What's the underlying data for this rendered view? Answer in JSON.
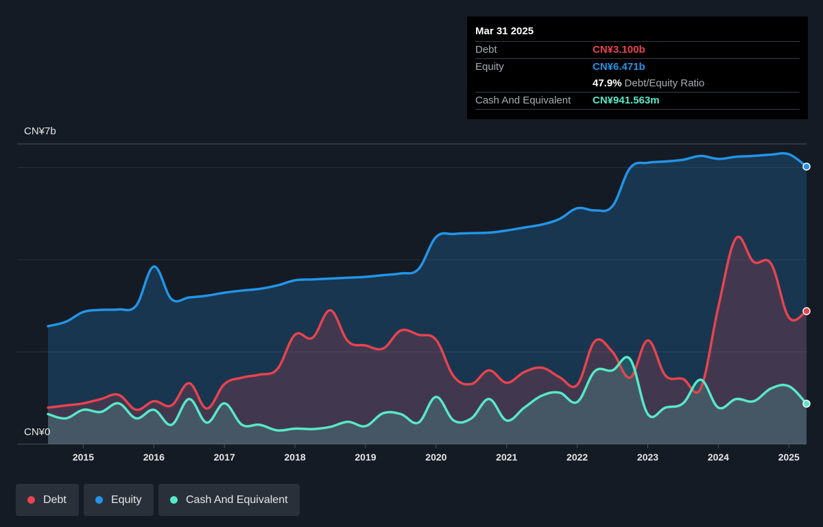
{
  "tooltip": {
    "date": "Mar 31 2025",
    "debt_label": "Debt",
    "debt_value": "CN¥3.100b",
    "equity_label": "Equity",
    "equity_value": "CN¥6.471b",
    "ratio_value": "47.9%",
    "ratio_label": "Debt/Equity Ratio",
    "cash_label": "Cash And Equivalent",
    "cash_value": "CN¥941.563m"
  },
  "legend": [
    {
      "label": "Debt",
      "color": "#e8434f"
    },
    {
      "label": "Equity",
      "color": "#2394e8"
    },
    {
      "label": "Cash And Equivalent",
      "color": "#58e8c8"
    }
  ],
  "chart_data": {
    "type": "area",
    "y_tick_labels": {
      "top": "CN¥7b",
      "bottom": "CN¥0"
    },
    "ylim": [
      0,
      7000
    ],
    "xlim": [
      2014.5,
      2025.25
    ],
    "x_ticks": [
      "2015",
      "2016",
      "2017",
      "2018",
      "2019",
      "2020",
      "2021",
      "2022",
      "2023",
      "2024",
      "2025"
    ],
    "grid": true,
    "legend_position": "bottom-left",
    "colors": {
      "debt": "#e8434f",
      "equity": "#2394e8",
      "cash": "#58e8c8"
    },
    "series": [
      {
        "name": "Equity",
        "key": "equity",
        "x": [
          2014.5,
          2014.75,
          2015.0,
          2015.25,
          2015.5,
          2015.75,
          2016.0,
          2016.25,
          2016.5,
          2016.75,
          2017.0,
          2017.25,
          2017.5,
          2017.75,
          2018.0,
          2018.25,
          2018.5,
          2018.75,
          2019.0,
          2019.25,
          2019.5,
          2019.75,
          2020.0,
          2020.25,
          2020.5,
          2020.75,
          2021.0,
          2021.25,
          2021.5,
          2021.75,
          2022.0,
          2022.25,
          2022.5,
          2022.75,
          2023.0,
          2023.25,
          2023.5,
          2023.75,
          2024.0,
          2024.25,
          2024.5,
          2024.75,
          2025.0,
          2025.25
        ],
        "values": [
          2750,
          2850,
          3080,
          3130,
          3140,
          3230,
          4140,
          3380,
          3420,
          3460,
          3530,
          3580,
          3620,
          3700,
          3820,
          3840,
          3860,
          3880,
          3900,
          3940,
          3980,
          4080,
          4830,
          4900,
          4920,
          4930,
          4980,
          5050,
          5120,
          5250,
          5500,
          5450,
          5550,
          6440,
          6560,
          6590,
          6630,
          6720,
          6650,
          6700,
          6720,
          6750,
          6760,
          6471
        ]
      },
      {
        "name": "Debt",
        "key": "debt",
        "x": [
          2014.5,
          2014.75,
          2015.0,
          2015.25,
          2015.5,
          2015.75,
          2016.0,
          2016.25,
          2016.5,
          2016.75,
          2017.0,
          2017.25,
          2017.5,
          2017.75,
          2018.0,
          2018.25,
          2018.5,
          2018.75,
          2019.0,
          2019.25,
          2019.5,
          2019.75,
          2020.0,
          2020.25,
          2020.5,
          2020.75,
          2021.0,
          2021.25,
          2021.5,
          2021.75,
          2022.0,
          2022.25,
          2022.5,
          2022.75,
          2023.0,
          2023.25,
          2023.5,
          2023.75,
          2024.0,
          2024.25,
          2024.5,
          2024.75,
          2025.0,
          2025.25
        ],
        "values": [
          850,
          900,
          950,
          1050,
          1150,
          800,
          1000,
          900,
          1420,
          830,
          1400,
          1550,
          1620,
          1750,
          2550,
          2480,
          3120,
          2400,
          2300,
          2230,
          2650,
          2550,
          2430,
          1580,
          1400,
          1720,
          1430,
          1680,
          1780,
          1560,
          1380,
          2400,
          2150,
          1550,
          2420,
          1600,
          1520,
          1300,
          3200,
          4800,
          4250,
          4200,
          2950,
          3100
        ]
      },
      {
        "name": "Cash And Equivalent",
        "key": "cash",
        "x": [
          2014.5,
          2014.75,
          2015.0,
          2015.25,
          2015.5,
          2015.75,
          2016.0,
          2016.25,
          2016.5,
          2016.75,
          2017.0,
          2017.25,
          2017.5,
          2017.75,
          2018.0,
          2018.25,
          2018.5,
          2018.75,
          2019.0,
          2019.25,
          2019.5,
          2019.75,
          2020.0,
          2020.25,
          2020.5,
          2020.75,
          2021.0,
          2021.25,
          2021.5,
          2021.75,
          2022.0,
          2022.25,
          2022.5,
          2022.75,
          2023.0,
          2023.25,
          2023.5,
          2023.75,
          2024.0,
          2024.25,
          2024.5,
          2024.75,
          2025.0,
          2025.25
        ],
        "values": [
          700,
          600,
          800,
          750,
          950,
          600,
          800,
          450,
          1050,
          500,
          950,
          450,
          450,
          320,
          360,
          350,
          400,
          520,
          420,
          720,
          700,
          500,
          1100,
          550,
          600,
          1050,
          550,
          850,
          1130,
          1200,
          980,
          1700,
          1720,
          1980,
          700,
          850,
          950,
          1500,
          850,
          1050,
          1000,
          1300,
          1350,
          941.563
        ]
      }
    ]
  }
}
